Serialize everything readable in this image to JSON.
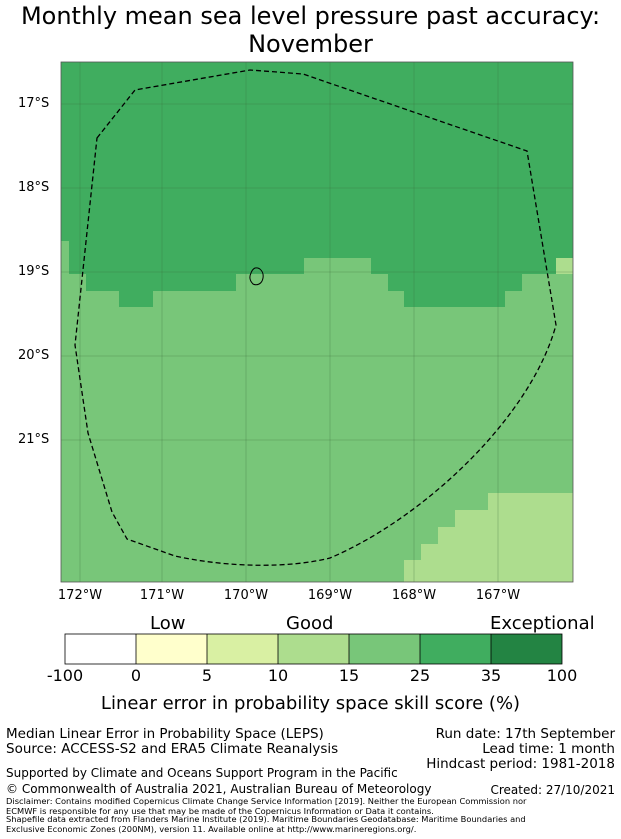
{
  "title": {
    "line1": "Monthly mean sea level pressure past accuracy:",
    "line2": "November"
  },
  "map": {
    "lat_labels": [
      "17°S",
      "18°S",
      "19°S",
      "20°S",
      "21°S"
    ],
    "lon_labels": [
      "172°W",
      "171°W",
      "170°W",
      "169°W",
      "168°W",
      "167°W"
    ],
    "category_colors": {
      "25-35": "#40ad5f",
      "15-25": "#78c679",
      "10-15": "#addd8e"
    }
  },
  "colorbar": {
    "categories": [
      "Low",
      "Good",
      "Exceptional"
    ],
    "ticks": [
      "-100",
      "0",
      "5",
      "10",
      "15",
      "25",
      "35",
      "100"
    ],
    "colors": [
      "#ffffff",
      "#ffffcc",
      "#d9f0a3",
      "#addd8e",
      "#78c679",
      "#40ad5f",
      "#238443"
    ],
    "title": "Linear error in probability space skill score (%)"
  },
  "info": {
    "method": "Median Linear Error in Probability Space (LEPS)",
    "source": "Source: ACCESS-S2 and ERA5 Climate Reanalysis",
    "run_date": "Run date: 17th September",
    "lead_time": "Lead time: 1 month",
    "hindcast": "Hindcast period: 1981-2018",
    "support": "Supported by Climate and Oceans Support Program in the Pacific",
    "copyright": "© Commonwealth of Australia 2021, Australian Bureau of Meteorology",
    "created": "Created: 27/10/2021",
    "disclaimer1": "Disclaimer: Contains modified Copernicus Climate Change Service Information [2019]. Neither the European Commission nor",
    "disclaimer2": "ECMWF is responsible for any use that may be made of the Copernicus Information or Data it contains.",
    "shapefile1": "Shapefile data extracted from Flanders Marine Institute (2019). Maritime Boundaries Geodatabase: Maritime Boundaries and",
    "shapefile2": "Exclusive Economic Zones (200NM), version 11. Available online at http://www.marineregions.org/."
  }
}
